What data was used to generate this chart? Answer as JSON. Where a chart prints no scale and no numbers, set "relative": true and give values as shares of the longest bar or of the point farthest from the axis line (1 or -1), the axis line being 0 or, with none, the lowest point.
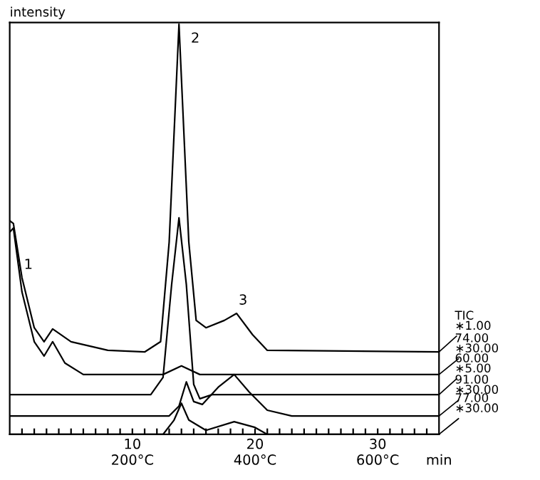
{
  "chart_data": {
    "type": "line",
    "relative": true,
    "ylabel": "intensity",
    "xlabel": "min",
    "xlim": [
      0,
      35
    ],
    "xticks": [
      {
        "value": 1,
        "label": null
      },
      {
        "value": 2,
        "label": null
      },
      {
        "value": 3,
        "label": null
      },
      {
        "value": 4,
        "label": null
      },
      {
        "value": 5,
        "label": null
      },
      {
        "value": 6,
        "label": null
      },
      {
        "value": 7,
        "label": null
      },
      {
        "value": 8,
        "label": null
      },
      {
        "value": 9,
        "label": null
      },
      10,
      {
        "value": 11,
        "label": null
      },
      {
        "value": 12,
        "label": null
      },
      {
        "value": 13,
        "label": null
      },
      {
        "value": 14,
        "label": null
      },
      {
        "value": 15,
        "label": null
      },
      {
        "value": 16,
        "label": null
      },
      {
        "value": 17,
        "label": null
      },
      {
        "value": 18,
        "label": null
      },
      {
        "value": 19,
        "label": null
      },
      20,
      {
        "value": 21,
        "label": null
      },
      {
        "value": 22,
        "label": null
      },
      {
        "value": 23,
        "label": null
      },
      {
        "value": 24,
        "label": null
      },
      {
        "value": 25,
        "label": null
      },
      {
        "value": 26,
        "label": null
      },
      {
        "value": 27,
        "label": null
      },
      {
        "value": 28,
        "label": null
      },
      {
        "value": 29,
        "label": null
      },
      30,
      {
        "value": 31,
        "label": null
      },
      {
        "value": 32,
        "label": null
      },
      {
        "value": 33,
        "label": null
      },
      {
        "value": 34,
        "label": null
      }
    ],
    "x2lim": [
      0,
      700
    ],
    "x2ticks": [
      {
        "value": 200,
        "label": "200°C"
      },
      {
        "value": 400,
        "label": "400°C"
      },
      {
        "value": 600,
        "label": "600°C"
      }
    ],
    "grid": false,
    "legend": "right",
    "marker": "none",
    "line_style": "solid",
    "series": [
      {
        "name": "TIC\n∗1.00",
        "color": "#000000",
        "x": [
          0,
          0.3,
          1,
          2,
          2.8,
          3.5,
          5,
          8,
          11,
          12.3,
          13,
          13.8,
          14.6,
          15.2,
          16,
          17.5,
          18.5,
          19.8,
          21,
          35
        ],
        "values": [
          0.521,
          0.514,
          0.382,
          0.26,
          0.226,
          0.257,
          0.226,
          0.205,
          0.201,
          0.226,
          0.469,
          1,
          0.469,
          0.278,
          0.26,
          0.278,
          0.295,
          0.243,
          0.205,
          0.201
        ]
      },
      {
        "name": "74.00\n∗30.00",
        "color": "#000000",
        "x": [
          0,
          0.3,
          1,
          2,
          2.8,
          3.5,
          4.5,
          6,
          12.5,
          14,
          15.5,
          35
        ],
        "values": [
          0.493,
          0.503,
          0.347,
          0.226,
          0.191,
          0.226,
          0.174,
          0.146,
          0.146,
          0.167,
          0.146,
          0.146
        ]
      },
      {
        "name": "60.00\n∗5.00",
        "color": "#000000",
        "x": [
          0,
          11.5,
          12.5,
          13.2,
          13.8,
          14.4,
          15,
          15.5,
          16.5,
          35
        ],
        "values": [
          0.097,
          0.097,
          0.139,
          0.365,
          0.528,
          0.365,
          0.122,
          0.087,
          0.097,
          0.097
        ]
      },
      {
        "name": "91.00\n∗30.00",
        "color": "#000000",
        "x": [
          0,
          13,
          13.8,
          14.4,
          15,
          15.7,
          17,
          18.3,
          19.5,
          21,
          23,
          35
        ],
        "values": [
          0.045,
          0.045,
          0.069,
          0.128,
          0.08,
          0.073,
          0.115,
          0.146,
          0.104,
          0.059,
          0.045,
          0.045
        ]
      },
      {
        "name": "77.00\n∗30.00",
        "color": "#000000",
        "x": [
          0,
          12.5,
          13.4,
          14,
          14.6,
          16,
          18.3,
          20,
          21,
          35
        ],
        "values": [
          0,
          0,
          0.035,
          0.076,
          0.035,
          0.01,
          0.031,
          0.017,
          0,
          0
        ]
      }
    ],
    "annotations": [
      {
        "text": "1",
        "x": 1,
        "y": 0.382
      },
      {
        "text": "2",
        "x": 13.8,
        "y": 1
      },
      {
        "text": "3",
        "x": 18.5,
        "y": 0.295
      }
    ]
  }
}
